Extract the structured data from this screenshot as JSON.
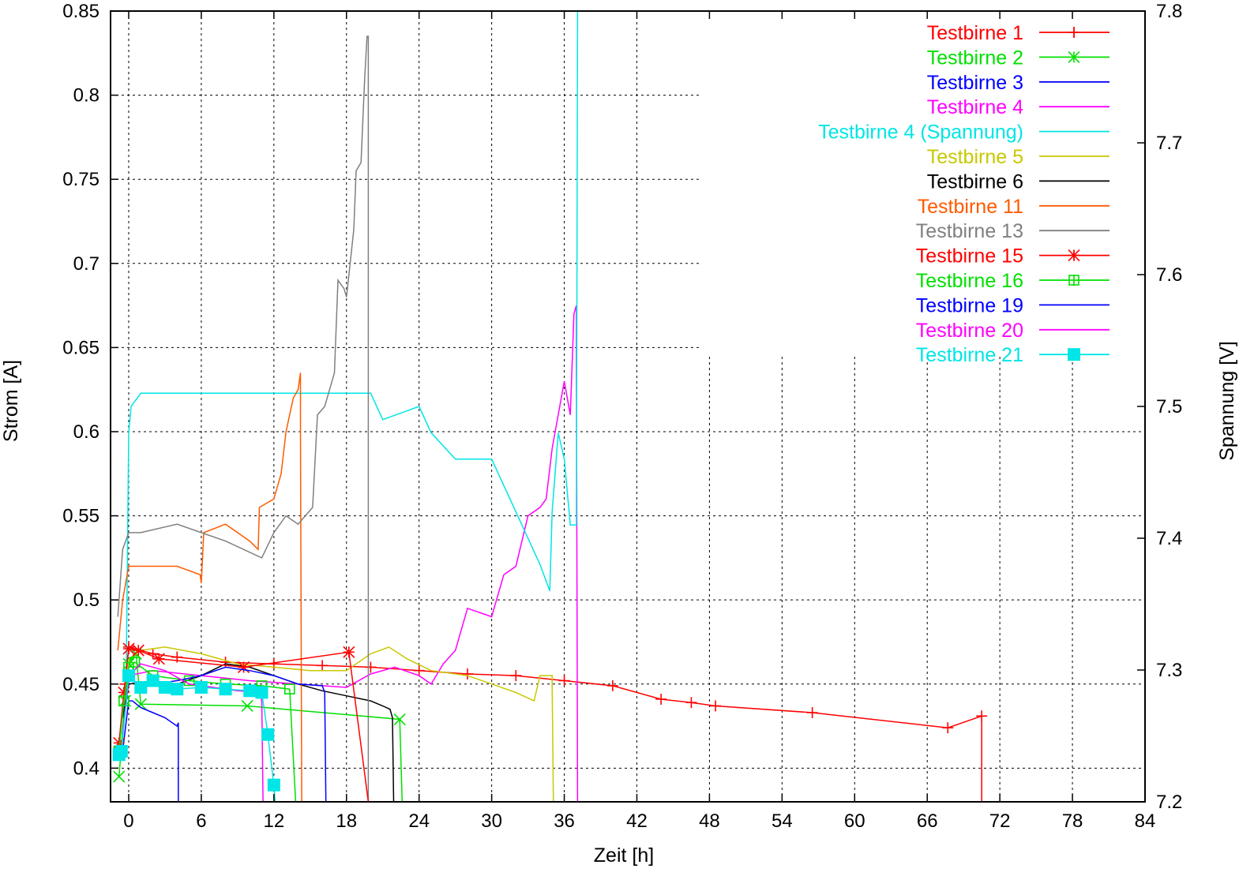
{
  "chart_data": {
    "type": "line",
    "xlabel": "Zeit [h]",
    "ylabel": "Strom [A]",
    "y2label": "Spannung [V]",
    "xlim": [
      -1.5,
      84
    ],
    "ylim": [
      0.38,
      0.85
    ],
    "y2lim": [
      7.2,
      7.8
    ],
    "x_ticks": [
      "0",
      "6",
      "12",
      "18",
      "24",
      "30",
      "36",
      "42",
      "48",
      "54",
      "60",
      "66",
      "72",
      "78",
      "84"
    ],
    "y_ticks": [
      "0.4",
      "0.45",
      "0.5",
      "0.55",
      "0.6",
      "0.65",
      "0.7",
      "0.75",
      "0.8",
      "0.85"
    ],
    "y2_ticks": [
      "7.2",
      "7.3",
      "7.4",
      "7.5",
      "7.6",
      "7.7",
      "7.8"
    ],
    "grid": true,
    "legend_position": "top-right",
    "series": [
      {
        "name": "Testbirne 1",
        "color": "#ff0000",
        "marker": "plus",
        "x": [
          -0.8,
          -0.3,
          0,
          2,
          4,
          8,
          12,
          16,
          20,
          24,
          28,
          32,
          36,
          40,
          44,
          46.5,
          48.5,
          56.5,
          67.7,
          70.5,
          70.5
        ],
        "y": [
          0.413,
          0.45,
          0.472,
          0.468,
          0.466,
          0.463,
          0.462,
          0.461,
          0.46,
          0.458,
          0.456,
          0.455,
          0.452,
          0.449,
          0.441,
          0.439,
          0.437,
          0.433,
          0.424,
          0.431,
          0.38
        ]
      },
      {
        "name": "Testbirne 2",
        "color": "#00e000",
        "marker": "cross",
        "x": [
          -0.8,
          -0.3,
          0,
          0.6,
          1,
          9.8,
          22.4,
          22.6
        ],
        "y": [
          0.395,
          0.44,
          0.462,
          0.468,
          0.438,
          0.437,
          0.429,
          0.38
        ]
      },
      {
        "name": "Testbirne 3",
        "color": "#0000ff",
        "marker": "none",
        "x": [
          -0.5,
          0,
          0.3,
          1,
          2,
          3,
          4,
          4.1,
          4.1
        ],
        "y": [
          0.41,
          0.44,
          0.44,
          0.436,
          0.433,
          0.43,
          0.425,
          0.427,
          0.38
        ]
      },
      {
        "name": "Testbirne 4",
        "color": "#ff00ff",
        "marker": "none",
        "x": [
          -0.5,
          0,
          2,
          6,
          10,
          14,
          18,
          20,
          22,
          24,
          25,
          26,
          27,
          28,
          30,
          31,
          32,
          33,
          34,
          34.5,
          35,
          36,
          36.5,
          36.8,
          37,
          37,
          37.1
        ],
        "y": [
          0.42,
          0.455,
          0.458,
          0.455,
          0.452,
          0.45,
          0.448,
          0.456,
          0.46,
          0.455,
          0.45,
          0.462,
          0.47,
          0.495,
          0.49,
          0.515,
          0.52,
          0.55,
          0.555,
          0.56,
          0.59,
          0.63,
          0.61,
          0.67,
          0.675,
          0.64,
          0.38
        ]
      },
      {
        "name": "Testbirne 4 (Spannung)",
        "color": "#00e5e5",
        "marker": "none",
        "axis": "right",
        "x": [
          -0.2,
          0,
          0.2,
          1,
          4,
          8,
          12,
          16,
          20,
          21,
          24,
          25,
          27,
          30,
          31,
          32,
          33,
          34,
          34.8,
          35,
          35.5,
          36,
          36.5,
          37,
          37.1,
          37.1
        ],
        "y": [
          7.3,
          7.48,
          7.5,
          7.51,
          7.51,
          7.51,
          7.51,
          7.51,
          7.51,
          7.49,
          7.5,
          7.48,
          7.46,
          7.46,
          7.44,
          7.42,
          7.4,
          7.38,
          7.36,
          7.42,
          7.48,
          7.46,
          7.41,
          7.41,
          7.8,
          7.8
        ]
      },
      {
        "name": "Testbirne 5",
        "color": "#c8c800",
        "marker": "none",
        "x": [
          -0.5,
          0,
          1,
          3,
          6,
          9,
          12,
          15,
          18,
          20,
          21.5,
          23,
          25,
          28,
          32,
          33.5,
          34,
          35,
          35,
          35.1
        ],
        "y": [
          0.43,
          0.465,
          0.47,
          0.472,
          0.468,
          0.462,
          0.46,
          0.458,
          0.458,
          0.468,
          0.472,
          0.465,
          0.458,
          0.455,
          0.445,
          0.44,
          0.455,
          0.455,
          0.45,
          0.38
        ]
      },
      {
        "name": "Testbirne 6",
        "color": "#000000",
        "marker": "none",
        "x": [
          -0.5,
          0,
          2,
          4,
          6,
          8,
          10,
          12,
          14,
          16,
          18,
          20,
          21,
          21.6,
          21.8,
          21.9
        ],
        "y": [
          0.43,
          0.45,
          0.452,
          0.45,
          0.455,
          0.462,
          0.46,
          0.455,
          0.45,
          0.446,
          0.443,
          0.44,
          0.437,
          0.435,
          0.43,
          0.38
        ]
      },
      {
        "name": "Testbirne 11",
        "color": "#ff5a00",
        "marker": "none",
        "x": [
          -0.9,
          -0.5,
          0,
          0.4,
          2,
          4,
          5.9,
          6,
          6.2,
          8,
          10,
          10.7,
          10.8,
          12,
          12.6,
          13,
          13.6,
          14,
          14.2,
          14.2,
          14.3
        ],
        "y": [
          0.47,
          0.5,
          0.52,
          0.52,
          0.52,
          0.52,
          0.515,
          0.51,
          0.54,
          0.545,
          0.535,
          0.53,
          0.555,
          0.56,
          0.575,
          0.6,
          0.62,
          0.625,
          0.635,
          0.6,
          0.38
        ]
      },
      {
        "name": "Testbirne 13",
        "color": "#808080",
        "marker": "none",
        "x": [
          -0.9,
          -0.5,
          0,
          1,
          4,
          8,
          11,
          12,
          13,
          14,
          15.2,
          15.6,
          16.2,
          17,
          17.3,
          17.8,
          18,
          18.6,
          18.8,
          19.2,
          19.5,
          19.7,
          19.8,
          19.8
        ],
        "y": [
          0.49,
          0.53,
          0.54,
          0.54,
          0.545,
          0.535,
          0.525,
          0.54,
          0.55,
          0.545,
          0.555,
          0.61,
          0.615,
          0.635,
          0.69,
          0.685,
          0.68,
          0.72,
          0.755,
          0.76,
          0.81,
          0.835,
          0.835,
          0.38
        ]
      },
      {
        "name": "Testbirne 15",
        "color": "#ff0000",
        "marker": "star",
        "x": [
          -0.8,
          -0.4,
          0,
          0.8,
          2.5,
          9.5,
          18.2,
          19.8
        ],
        "y": [
          0.415,
          0.445,
          0.471,
          0.47,
          0.465,
          0.46,
          0.469,
          0.38
        ]
      },
      {
        "name": "Testbirne 16",
        "color": "#00e000",
        "marker": "open-square",
        "x": [
          -0.8,
          -0.4,
          0,
          0.5,
          2,
          5,
          8,
          11,
          13.3,
          13.8
        ],
        "y": [
          0.41,
          0.44,
          0.46,
          0.463,
          0.455,
          0.452,
          0.45,
          0.449,
          0.447,
          0.38
        ]
      },
      {
        "name": "Testbirne 19",
        "color": "#0000ff",
        "marker": "none",
        "x": [
          -0.5,
          0,
          2,
          4,
          6,
          8,
          10,
          12,
          14,
          16,
          16.2,
          16.3
        ],
        "y": [
          0.42,
          0.452,
          0.45,
          0.452,
          0.455,
          0.46,
          0.458,
          0.455,
          0.45,
          0.449,
          0.445,
          0.38
        ]
      },
      {
        "name": "Testbirne 20",
        "color": "#ff00ff",
        "marker": "none",
        "x": [
          -0.5,
          0,
          1,
          3,
          5,
          7,
          9,
          10.8,
          11,
          11.1
        ],
        "y": [
          0.42,
          0.455,
          0.462,
          0.458,
          0.45,
          0.448,
          0.446,
          0.445,
          0.44,
          0.38
        ]
      },
      {
        "name": "Testbirne 21",
        "color": "#00e5e5",
        "marker": "filled-square",
        "x": [
          -0.8,
          -0.6,
          0,
          1,
          2,
          3,
          4,
          6,
          8,
          10,
          11,
          11.5,
          12,
          12.1
        ],
        "y": [
          0.408,
          0.41,
          0.455,
          0.448,
          0.452,
          0.448,
          0.447,
          0.448,
          0.447,
          0.446,
          0.445,
          0.42,
          0.39,
          0.38
        ]
      }
    ]
  }
}
